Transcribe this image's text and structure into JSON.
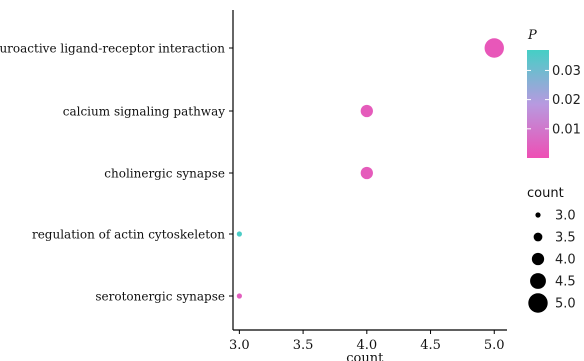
{
  "chart_data": {
    "type": "scatter",
    "title": "",
    "xlabel": "count",
    "ylabel": "",
    "xlim": [
      2.95,
      5.1
    ],
    "x_ticks": [
      "3.0",
      "3.5",
      "4.0",
      "4.5",
      "5.0"
    ],
    "x_tick_values": [
      3.0,
      3.5,
      4.0,
      4.5,
      5.0
    ],
    "categories": [
      "neuroactive ligand-receptor interaction",
      "calcium signaling pathway",
      "cholinergic synapse",
      "regulation of actin cytoskeleton",
      "serotonergic synapse"
    ],
    "points": [
      {
        "term": "neuroactive ligand-receptor interaction",
        "count": 5.0,
        "p": 0.002
      },
      {
        "term": "calcium signaling pathway",
        "count": 4.0,
        "p": 0.003
      },
      {
        "term": "cholinergic synapse",
        "count": 4.0,
        "p": 0.003
      },
      {
        "term": "regulation of actin cytoskeleton",
        "count": 3.0,
        "p": 0.036
      },
      {
        "term": "serotonergic synapse",
        "count": 3.0,
        "p": 0.004
      }
    ],
    "grid": false,
    "legend_placement": "right",
    "color_legend": {
      "title": "P",
      "ticks": [
        "0.03",
        "0.02",
        "0.01"
      ],
      "tick_values": [
        0.03,
        0.02,
        0.01
      ],
      "range": [
        0.0,
        0.037
      ],
      "color_low": "#ee4fb4",
      "color_high": "#45cfc5"
    },
    "size_legend": {
      "title": "count",
      "labels": [
        "3.0",
        "3.5",
        "4.0",
        "4.5",
        "5.0"
      ],
      "values": [
        3.0,
        3.5,
        4.0,
        4.5,
        5.0
      ],
      "color": "#000000"
    }
  }
}
